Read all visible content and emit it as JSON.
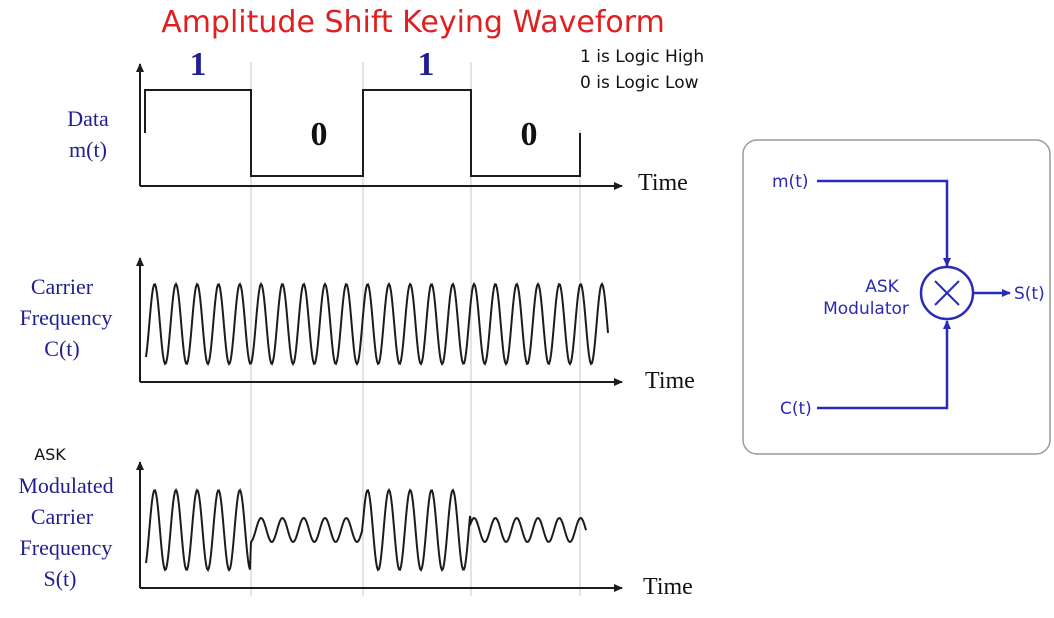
{
  "title": "Amplitude Shift Keying Waveform",
  "legend": {
    "high": "1 is Logic High",
    "low": "0 is Logic Low"
  },
  "data_plot": {
    "label_line1": "Data",
    "label_line2": "m(t)",
    "xlabel": "Time",
    "bits": [
      "1",
      "0",
      "1",
      "0"
    ]
  },
  "carrier_plot": {
    "label_line1": "Carrier",
    "label_line2": "Frequency",
    "label_line3": "C(t)",
    "xlabel": "Time"
  },
  "modulated_plot": {
    "label_line0": "ASK",
    "label_line1": "Modulated",
    "label_line2": "Carrier",
    "label_line3": "Frequency",
    "label_line4": "S(t)",
    "xlabel": "Time"
  },
  "block": {
    "input_m": "m(t)",
    "input_c": "C(t)",
    "output": "S(t)",
    "name_line1": "ASK",
    "name_line2": "Modulator"
  },
  "colors": {
    "title": "#e02020",
    "block": "#2a2ab8",
    "trace": "#1c1c1c"
  }
}
